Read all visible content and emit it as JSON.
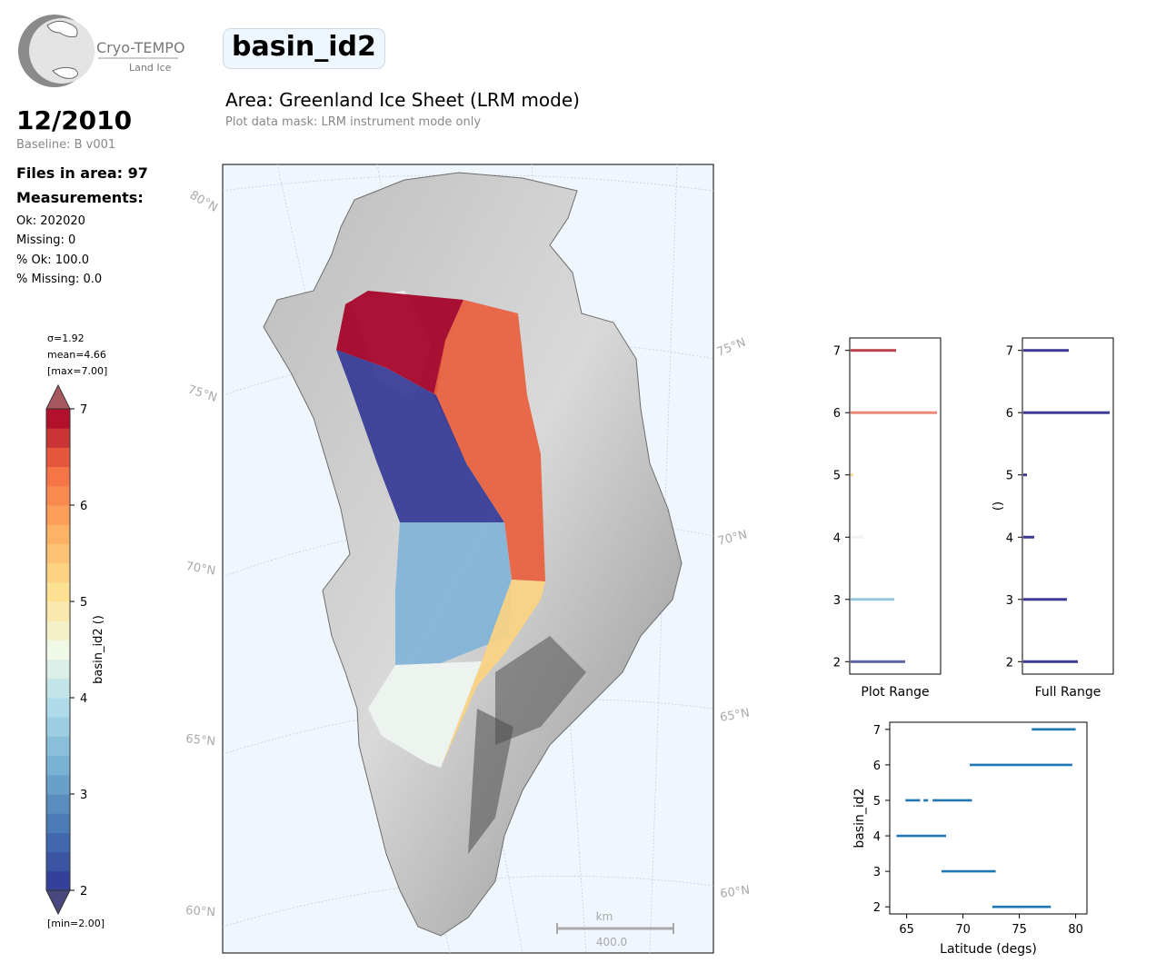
{
  "logo": {
    "brand": "Cryo-TEMPO",
    "subtitle": "Land Ice"
  },
  "header": {
    "variable": "basin_id2",
    "period": "12/2010",
    "baseline": "Baseline: B v001",
    "area": "Area: Greenland Ice Sheet (LRM mode)",
    "mask_note": "Plot data mask: LRM instrument mode only"
  },
  "stats": {
    "files": "Files in area: 97",
    "measurements_title": "Measurements:",
    "ok": "Ok: 202020",
    "missing": "Missing: 0",
    "pct_ok": "% Ok: 100.0",
    "pct_missing": "% Missing: 0.0"
  },
  "colorbar": {
    "sigma": "σ=1.92",
    "mean": "mean=4.66",
    "max": "[max=7.00]",
    "min": "[min=2.00]",
    "label": "basin_id2 ()",
    "range": [
      2,
      7
    ],
    "ticks": [
      2,
      3,
      4,
      5,
      6,
      7
    ],
    "levels": 25
  },
  "map": {
    "lat_labels": [
      "80°N",
      "75°N",
      "70°N",
      "65°N",
      "60°N"
    ],
    "lat_labels_right": [
      "75°N",
      "70°N",
      "65°N",
      "60°N"
    ],
    "scalebar_unit": "km",
    "scalebar_value": "400.0",
    "colors": {
      "ocean": "#eff6fd",
      "basin7": "#a50026",
      "basin6": "#e8603d",
      "basin5": "#fdd37f",
      "basin4": "#eef5f0",
      "basin3": "#7eb3d8",
      "basin2": "#313695"
    }
  },
  "chart_data": [
    {
      "type": "bar",
      "name": "plot-range-histogram",
      "orientation": "horizontal",
      "xlabel": "Plot Range",
      "ylim": [
        1.8,
        7.2
      ],
      "yticks": [
        2,
        3,
        4,
        5,
        6,
        7
      ],
      "categories": [
        2,
        3,
        4,
        5,
        6,
        7
      ],
      "values": [
        0.6,
        0.48,
        0.14,
        0.03,
        0.95,
        0.5
      ],
      "colors": [
        "#5d64a6",
        "#95c6db",
        "#f1f3f1",
        "#fbd89a",
        "#e98a7a",
        "#b94350"
      ]
    },
    {
      "type": "bar",
      "name": "full-range-histogram",
      "orientation": "horizontal",
      "xlabel": "Full Range",
      "ylabel": "()",
      "ylim": [
        1.8,
        7.2
      ],
      "yticks": [
        2,
        3,
        4,
        5,
        6,
        7
      ],
      "categories": [
        2,
        3,
        4,
        5,
        6,
        7
      ],
      "values": [
        0.6,
        0.48,
        0.12,
        0.04,
        0.95,
        0.5
      ],
      "colors": [
        "#3c3b94",
        "#3c3b94",
        "#3c3b94",
        "#3c3b94",
        "#3c3b94",
        "#3c3b94"
      ]
    },
    {
      "type": "scatter",
      "name": "basin-vs-latitude",
      "xlabel": "Latitude (degs)",
      "ylabel": "basin_id2",
      "xlim": [
        63.5,
        81
      ],
      "ylim": [
        1.8,
        7.2
      ],
      "xticks": [
        65,
        70,
        75,
        80
      ],
      "yticks": [
        2,
        3,
        4,
        5,
        6,
        7
      ],
      "color": "#1f77b4",
      "segments": [
        {
          "y": 7,
          "x": [
            76.1,
            80.0
          ]
        },
        {
          "y": 6,
          "x": [
            70.6,
            79.7
          ]
        },
        {
          "y": 5,
          "x": [
            64.9,
            66.2
          ]
        },
        {
          "y": 5,
          "x": [
            66.5,
            66.9
          ]
        },
        {
          "y": 5,
          "x": [
            67.3,
            70.8
          ]
        },
        {
          "y": 4,
          "x": [
            64.1,
            68.5
          ]
        },
        {
          "y": 3,
          "x": [
            68.1,
            72.9
          ]
        },
        {
          "y": 2,
          "x": [
            72.6,
            77.8
          ]
        }
      ]
    }
  ]
}
